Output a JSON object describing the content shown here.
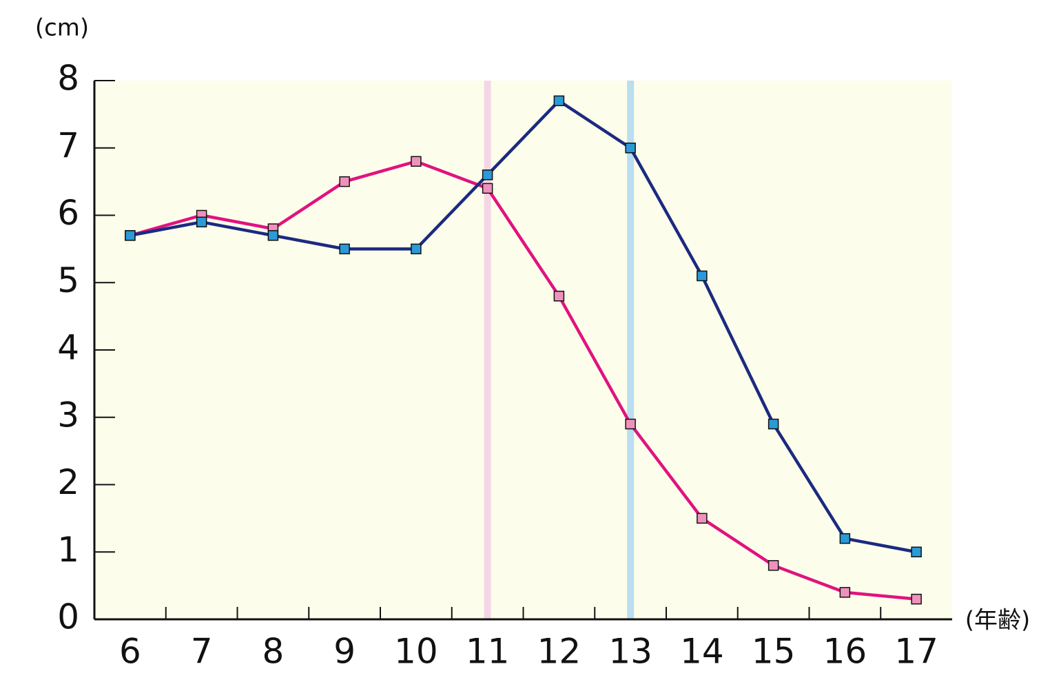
{
  "chart_data": {
    "type": "line",
    "y_unit": "(cm)",
    "x_unit": "(年齢)",
    "x": [
      6,
      7,
      8,
      9,
      10,
      11,
      12,
      13,
      14,
      15,
      16,
      17
    ],
    "xlim": [
      5.5,
      17.5
    ],
    "xticks": [
      6,
      7,
      8,
      9,
      10,
      11,
      12,
      13,
      14,
      15,
      16,
      17
    ],
    "ylim": [
      0,
      8
    ],
    "yticks": [
      0,
      1,
      2,
      3,
      4,
      5,
      6,
      7,
      8
    ],
    "background": "#fdfdeb",
    "highlights": [
      {
        "x": 11,
        "color": "#f5d6e6"
      },
      {
        "x": 13,
        "color": "#b9def0"
      }
    ],
    "series": [
      {
        "color": "#e0137f",
        "marker_color": "#ef92bb",
        "values": [
          5.7,
          6.0,
          5.8,
          6.5,
          6.8,
          6.4,
          4.8,
          2.9,
          1.5,
          0.8,
          0.4,
          0.3
        ]
      },
      {
        "color": "#1b2a80",
        "marker_color": "#2a9ad8",
        "values": [
          5.7,
          5.9,
          5.7,
          5.5,
          5.5,
          6.6,
          7.7,
          7.0,
          5.1,
          2.9,
          1.2,
          1.0
        ]
      }
    ]
  }
}
